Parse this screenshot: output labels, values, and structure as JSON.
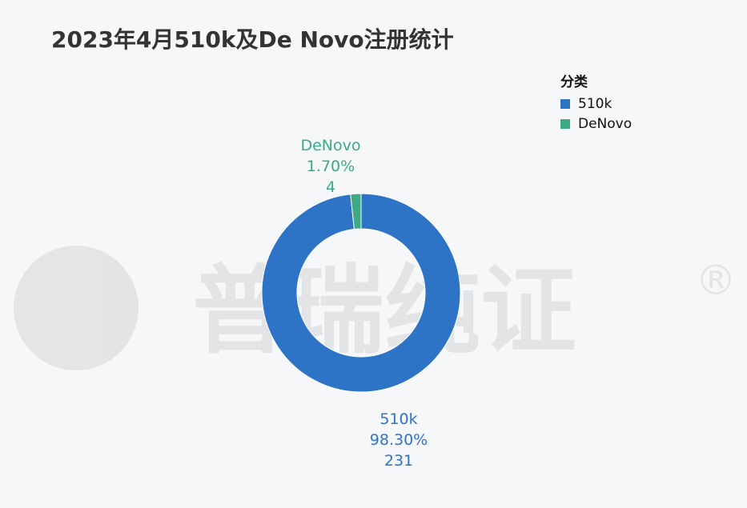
{
  "title": "2023年4月510k及De Novo注册统计",
  "legend": {
    "title": "分类",
    "items": [
      {
        "label": "510k",
        "color": "#2e74c6"
      },
      {
        "label": "DeNovo",
        "color": "#3aab86"
      }
    ]
  },
  "watermark": {
    "text": "普瑞纯证",
    "mark": "®"
  },
  "chart_data": {
    "type": "pie",
    "donut": true,
    "title": "2023年4月510k及De Novo注册统计",
    "legend_title": "分类",
    "legend_position": "top-right",
    "slices": [
      {
        "name": "510k",
        "value": 231,
        "percent": "98.30%",
        "color": "#2e74c6"
      },
      {
        "name": "DeNovo",
        "value": 4,
        "percent": "1.70%",
        "color": "#3aab86"
      }
    ]
  }
}
